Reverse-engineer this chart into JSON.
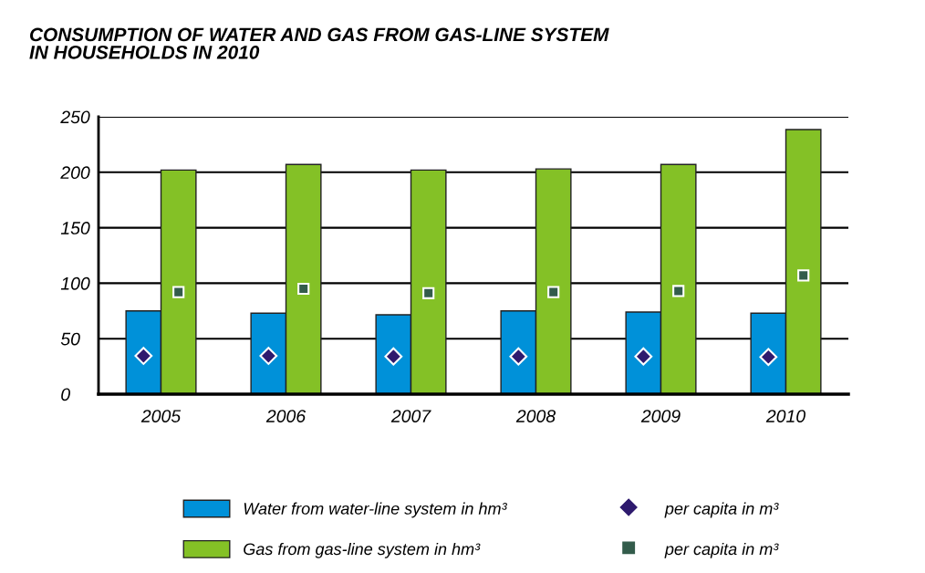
{
  "chart_data": {
    "type": "bar",
    "title": "CONSUMPTION OF WATER AND GAS FROM GAS-LINE SYSTEM\nIN HOUSEHOLDS IN 2010",
    "categories": [
      "2005",
      "2006",
      "2007",
      "2008",
      "2009",
      "2010"
    ],
    "series": [
      {
        "name": "Water from water-line system in hm³",
        "color": "#0091d9",
        "values": [
          75,
          73,
          71.5,
          75,
          74,
          73
        ]
      },
      {
        "name": "Gas from gas-line system in hm³",
        "color": "#84c126",
        "values": [
          202,
          207,
          202,
          203,
          207,
          238.5
        ]
      },
      {
        "name": "per capita in m³",
        "type": "scatter",
        "marker": "diamond",
        "color": "#2e1a6e",
        "values": [
          34.5,
          34.5,
          34,
          34,
          34,
          33.5
        ]
      },
      {
        "name": "per capita in m³",
        "type": "scatter",
        "marker": "square",
        "color": "#335c4b",
        "values": [
          92,
          95,
          91,
          92,
          93,
          107
        ]
      }
    ],
    "ylim": [
      0,
      250
    ],
    "yticks": [
      0,
      50,
      100,
      150,
      200,
      250
    ],
    "grid": "y",
    "legend": "bottom"
  }
}
